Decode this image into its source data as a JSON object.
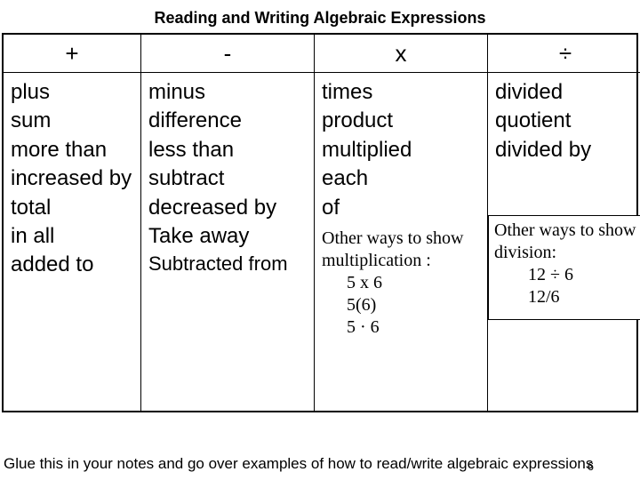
{
  "title": "Reading and Writing Algebraic Expressions",
  "headers": {
    "c0": "+",
    "c1": "-",
    "c2": "x",
    "c3": "÷"
  },
  "cols": {
    "c0": {
      "t0": "plus",
      "t1": "sum",
      "t2": "more than",
      "t3": "increased by",
      "t4": "total",
      "t5": "in all",
      "t6": "added to"
    },
    "c1": {
      "t0": "minus",
      "t1": "difference",
      "t2": "less than",
      "t3": "subtract",
      "t4": "decreased by",
      "t5": "Take away",
      "t6": "Subtracted from"
    },
    "c2": {
      "t0": "times",
      "t1": "product",
      "t2": "multiplied",
      "t3": "each",
      "t4": "of",
      "aux_head1": "Other ways to show",
      "aux_head2": "multiplication :",
      "ex0": "5 x 6",
      "ex1": "5(6)",
      "ex2": "5 · 6"
    },
    "c3": {
      "t0": "divided",
      "t1": "quotient",
      "t2": "divided by",
      "aux_head1": "Other ways to show",
      "aux_head2": "division:",
      "ex0": "12 ÷ 6",
      "ex1": "12/6"
    }
  },
  "footer": "Glue this in your notes and go over examples of how to read/write algebraic expressions",
  "pagenum": "6",
  "style": {
    "bg": "#ffffff",
    "fg": "#000000",
    "border": "#000000",
    "title_fontsize": 18,
    "header_fontsize": 26,
    "body_fontsize": 24,
    "aux_fontsize": 20,
    "aux_font": "serif"
  }
}
